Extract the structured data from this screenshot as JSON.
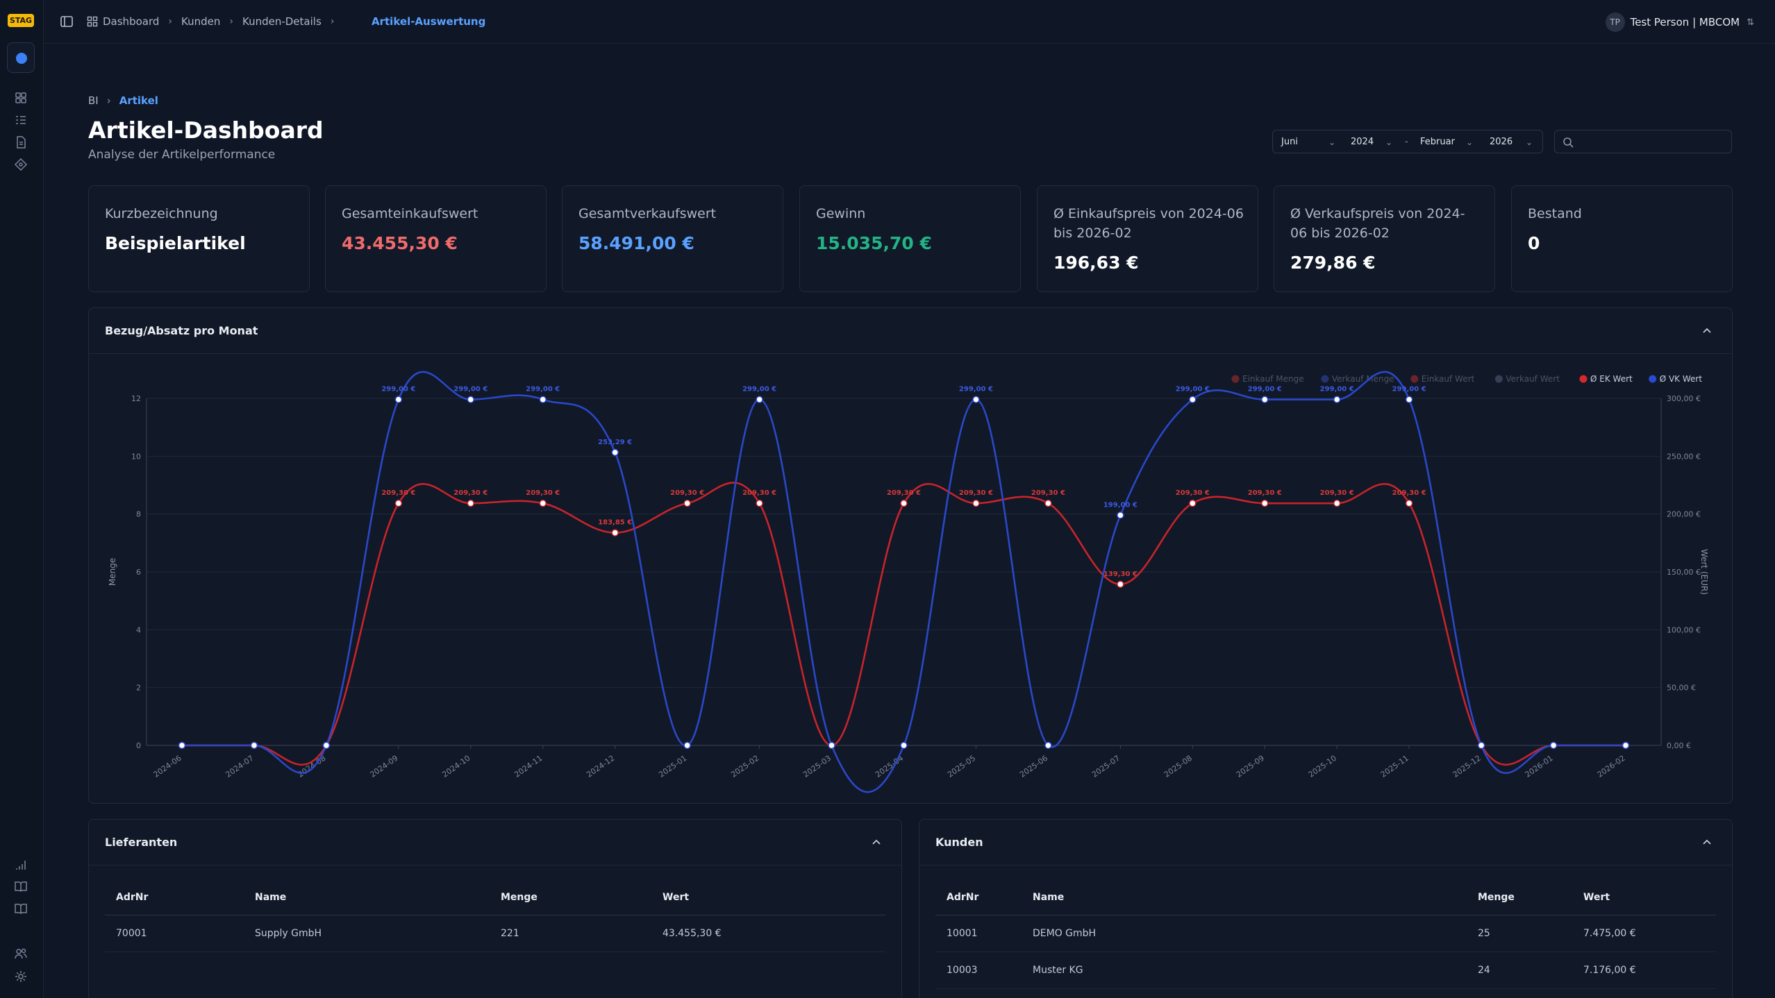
{
  "app": {
    "badge": "STAG",
    "breadcrumb": [
      "Dashboard",
      "Kunden",
      "Kunden-Details"
    ],
    "active_page": "Artikel-Auswertung",
    "user": {
      "initials": "TP",
      "name": "Test Person | MBCOM"
    }
  },
  "page": {
    "breadcrumb_root": "BI",
    "breadcrumb_current": "Artikel",
    "title": "Artikel-Dashboard",
    "subtitle": "Analyse der Artikelperformance"
  },
  "filters": {
    "from_month": "Juni",
    "from_year": "2024",
    "separator": "-",
    "to_month": "Februar",
    "to_year": "2026",
    "search_value": ""
  },
  "kpis": [
    {
      "label": "Kurzbezeichnung",
      "value": "Beispielartikel",
      "color": "#ffffff"
    },
    {
      "label": "Gesamteinkaufswert",
      "value": "43.455,30 €",
      "color": "#f06b6b"
    },
    {
      "label": "Gesamtverkaufswert",
      "value": "58.491,00 €",
      "color": "#5aa2ff"
    },
    {
      "label": "Gewinn",
      "value": "15.035,70 €",
      "color": "#22b486"
    },
    {
      "label": "Ø Einkaufspreis von 2024-06 bis 2026-02",
      "value": "196,63 €",
      "color": "#ffffff"
    },
    {
      "label": "Ø Verkaufspreis von 2024-06 bis 2026-02",
      "value": "279,86 €",
      "color": "#ffffff"
    },
    {
      "label": "Bestand",
      "value": "0",
      "color": "#ffffff"
    }
  ],
  "chart_panel": {
    "title": "Bezug/Absatz pro Monat"
  },
  "chart_data": {
    "type": "line",
    "x": [
      "2024-06",
      "2024-07",
      "2024-08",
      "2024-09",
      "2024-10",
      "2024-11",
      "2024-12",
      "2025-01",
      "2025-02",
      "2025-03",
      "2025-04",
      "2025-05",
      "2025-06",
      "2025-07",
      "2025-08",
      "2025-09",
      "2025-10",
      "2025-11",
      "2025-12",
      "2026-01",
      "2026-02"
    ],
    "ylabel": "Menge",
    "y2label": "Wert (EUR)",
    "ylim": [
      0,
      12
    ],
    "y_ticks": [
      "0",
      "2",
      "4",
      "6",
      "8",
      "10",
      "12"
    ],
    "y2lim": [
      0,
      300
    ],
    "y2_ticks": [
      "0,00 €",
      "50,00 €",
      "100,00 €",
      "150,00 €",
      "200,00 €",
      "250,00 €",
      "300,00 €"
    ],
    "legend_position": "top-right",
    "legend": [
      {
        "name": "Einkauf Menge",
        "color": "#8f2a2a",
        "hidden": true
      },
      {
        "name": "Verkauf Menge",
        "color": "#2a3f8f",
        "hidden": true
      },
      {
        "name": "Einkauf Wert",
        "color": "#8f2a2a",
        "hidden": true
      },
      {
        "name": "Verkauf Wert",
        "color": "#44506a",
        "hidden": true
      },
      {
        "name": "Ø EK Wert",
        "color": "#d6282c",
        "hidden": false
      },
      {
        "name": "Ø VK Wert",
        "color": "#2b49d0",
        "hidden": false
      }
    ],
    "series": [
      {
        "name": "Ø EK Wert",
        "color": "#c8242a",
        "values": [
          0,
          0,
          0,
          209.3,
          209.3,
          209.3,
          183.85,
          209.3,
          209.3,
          0,
          209.3,
          209.3,
          209.3,
          139.3,
          209.3,
          209.3,
          209.3,
          209.3,
          0,
          0,
          0
        ],
        "labels": [
          "",
          "",
          "",
          "209,30 €",
          "209,30 €",
          "209,30 €",
          "183,85 €",
          "209,30 €",
          "209,30 €",
          "",
          "209,30 €",
          "209,30 €",
          "209,30 €",
          "139,30 €",
          "209,30 €",
          "209,30 €",
          "209,30 €",
          "209,30 €",
          "",
          "",
          ""
        ]
      },
      {
        "name": "Ø VK Wert",
        "color": "#2a48c8",
        "values": [
          0,
          0,
          0,
          299,
          299,
          299,
          253.29,
          0,
          299,
          0,
          0,
          299,
          0,
          199,
          299,
          299,
          299,
          299,
          0,
          0,
          0
        ],
        "labels": [
          "",
          "",
          "",
          "299,00 €",
          "299,00 €",
          "299,00 €",
          "253,29 €",
          "",
          "299,00 €",
          "",
          "",
          "299,00 €",
          "",
          "199,00 €",
          "299,00 €",
          "299,00 €",
          "299,00 €",
          "299,00 €",
          "",
          "",
          ""
        ]
      }
    ]
  },
  "lieferanten": {
    "title": "Lieferanten",
    "columns": [
      "AdrNr",
      "Name",
      "Menge",
      "Wert"
    ],
    "rows": [
      [
        "70001",
        "Supply GmbH",
        "221",
        "43.455,30 €"
      ]
    ]
  },
  "kunden": {
    "title": "Kunden",
    "columns": [
      "AdrNr",
      "Name",
      "Menge",
      "Wert"
    ],
    "rows": [
      [
        "10001",
        "DEMO GmbH",
        "25",
        "7.475,00 €"
      ],
      [
        "10003",
        "Muster KG",
        "24",
        "7.176,00 €"
      ]
    ]
  }
}
